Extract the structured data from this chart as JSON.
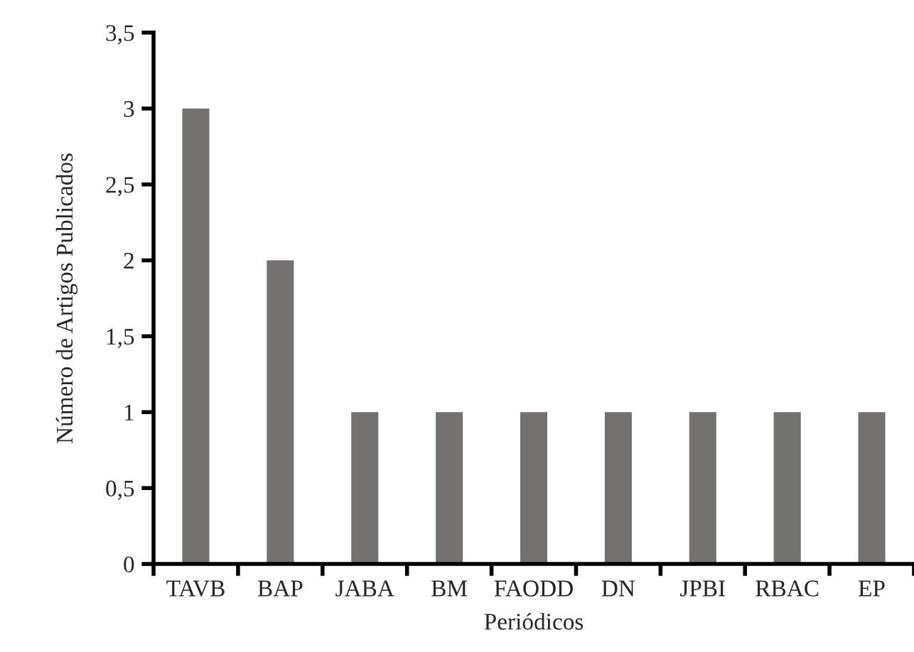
{
  "chart_data": {
    "type": "bar",
    "xlabel": "Periódicos",
    "ylabel": "Número de Artigos Publicados",
    "categories": [
      "TAVB",
      "BAP",
      "JABA",
      "BM",
      "FAODD",
      "DN",
      "JPBI",
      "RBAC",
      "EP"
    ],
    "values": [
      3,
      2,
      1,
      1,
      1,
      1,
      1,
      1,
      1
    ],
    "color": "#757170",
    "ylim": [
      0,
      3.5
    ],
    "yticks": [
      {
        "value": 0,
        "label": "0"
      },
      {
        "value": 0.5,
        "label": "0,5"
      },
      {
        "value": 1,
        "label": "1"
      },
      {
        "value": 1.5,
        "label": "1,5"
      },
      {
        "value": 2,
        "label": "2"
      },
      {
        "value": 2.5,
        "label": "2,5"
      },
      {
        "value": 3,
        "label": "3"
      },
      {
        "value": 3.5,
        "label": "3,5"
      }
    ],
    "grid": false,
    "legend": false
  }
}
